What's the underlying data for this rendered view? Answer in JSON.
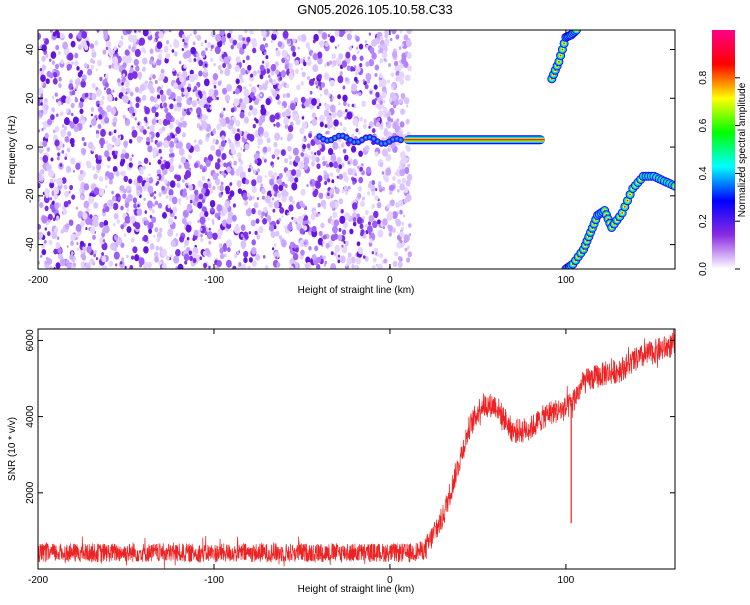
{
  "title": "GN05.2026.105.10.58.C33",
  "chart_data": [
    {
      "type": "heatmap",
      "xlabel": "Height of straight line (km)",
      "ylabel": "Frequency (Hz)",
      "xlim": [
        -200,
        162
      ],
      "ylim": [
        -50,
        48
      ],
      "xticks": [
        -200,
        -100,
        0,
        100
      ],
      "yticks": [
        -40,
        -20,
        0,
        20,
        40
      ],
      "noise_region_x": [
        -200,
        8
      ],
      "horizontal_line": {
        "x": [
          8,
          88
        ],
        "frequency": 3
      },
      "upper_branch": [
        [
          92,
          28
        ],
        [
          96,
          35
        ],
        [
          100,
          45
        ],
        [
          103,
          46
        ],
        [
          106,
          48
        ]
      ],
      "lower_branch": [
        [
          100,
          -50
        ],
        [
          104,
          -48
        ],
        [
          110,
          -42
        ],
        [
          114,
          -35
        ],
        [
          118,
          -28
        ],
        [
          122,
          -26
        ],
        [
          126,
          -33
        ],
        [
          132,
          -27
        ],
        [
          138,
          -17
        ],
        [
          144,
          -12
        ],
        [
          150,
          -12
        ],
        [
          156,
          -14
        ],
        [
          162,
          -16
        ]
      ],
      "colorbar": {
        "label": "Normalized spectral amplitude",
        "range": [
          0,
          1
        ],
        "ticks": [
          "0.0",
          "0.2",
          "0.4",
          "0.6",
          "0.8"
        ],
        "colors": [
          "#ffffff",
          "#8a2be2",
          "#0000ff",
          "#00ffff",
          "#00ff00",
          "#ffff00",
          "#ff0000",
          "#ff0088"
        ]
      },
      "grid": false
    },
    {
      "type": "line",
      "xlabel": "Height of straight line (km)",
      "ylabel": "SNR (10 * v/v)",
      "xlim": [
        -200,
        162
      ],
      "ylim": [
        0,
        6300
      ],
      "xticks": [
        -200,
        -100,
        0,
        100
      ],
      "yticks": [
        2000,
        4000,
        6000
      ],
      "series_color": "#ee2222",
      "trend": {
        "x": [
          -200,
          -150,
          -100,
          -50,
          0,
          10,
          20,
          30,
          38,
          45,
          52,
          60,
          70,
          80,
          90,
          100,
          104,
          110,
          120,
          130,
          140,
          150,
          162
        ],
        "y": [
          420,
          430,
          420,
          430,
          430,
          420,
          500,
          1350,
          2600,
          3700,
          4300,
          4300,
          3600,
          3700,
          4100,
          4200,
          4400,
          4900,
          5100,
          5200,
          5500,
          5700,
          5900
        ]
      },
      "noise_amplitude": 250,
      "spike": {
        "x": 103,
        "y": 1200
      },
      "grid": false
    }
  ]
}
